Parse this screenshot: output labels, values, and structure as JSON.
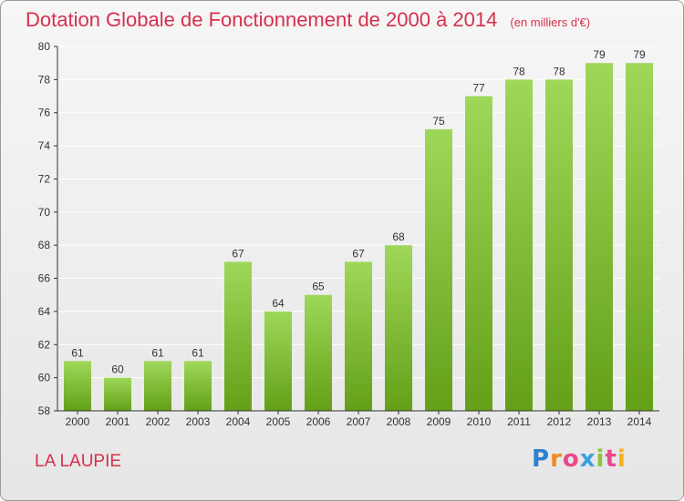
{
  "title": "Dotation Globale de Fonctionnement de 2000 à 2014",
  "unit_note": "(en milliers d'€)",
  "commune": "LA LAUPIE",
  "logo": {
    "text": "Proxiti",
    "letters": [
      {
        "ch": "P",
        "color": "#2f7fd0"
      },
      {
        "ch": "r",
        "color": "#f08a1c"
      },
      {
        "ch": "o",
        "color": "#e84a8a"
      },
      {
        "ch": "x",
        "color": "#3aa0e0"
      },
      {
        "ch": "i",
        "color": "#8cc63f"
      },
      {
        "ch": "t",
        "color": "#e84a8a"
      },
      {
        "ch": "i",
        "color": "#f5b01e"
      }
    ]
  },
  "colors": {
    "accent": "#d6304e",
    "bar_top": "#9ed85a",
    "bar_bottom": "#63a017",
    "axis": "#333333",
    "grid": "#ffffff"
  },
  "chart_data": {
    "type": "bar",
    "categories": [
      "2000",
      "2001",
      "2002",
      "2003",
      "2004",
      "2005",
      "2006",
      "2007",
      "2008",
      "2009",
      "2010",
      "2011",
      "2012",
      "2013",
      "2014"
    ],
    "values": [
      61,
      60,
      61,
      61,
      67,
      64,
      65,
      67,
      68,
      75,
      77,
      78,
      78,
      79,
      79
    ],
    "ylim": [
      58,
      80
    ],
    "yticks": [
      58,
      60,
      62,
      64,
      66,
      68,
      70,
      72,
      74,
      76,
      78,
      80
    ],
    "grid": true,
    "data_labels": true
  }
}
